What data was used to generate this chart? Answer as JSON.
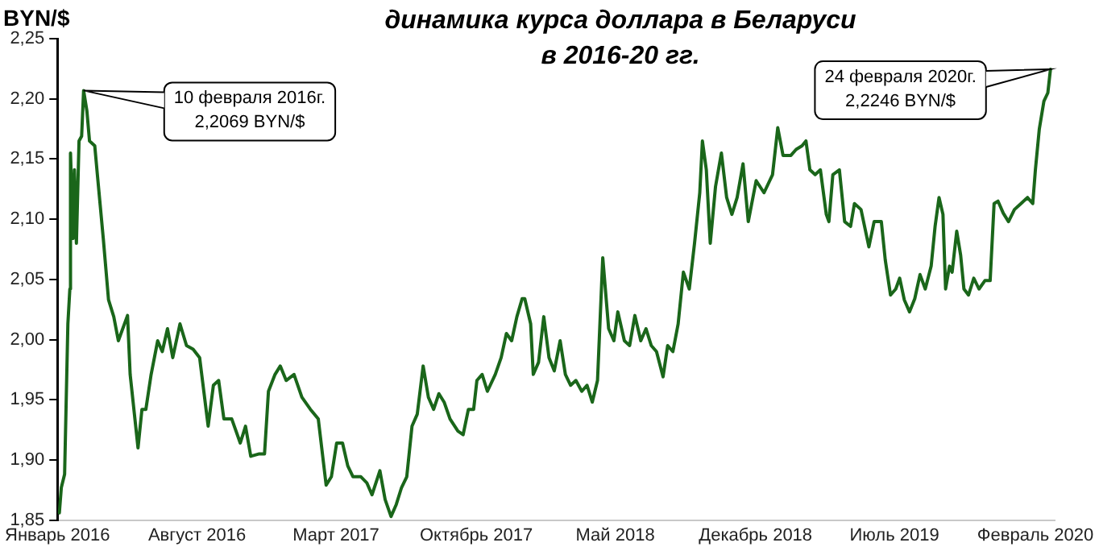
{
  "chart_data": {
    "type": "line",
    "title": "динамика курса доллара в Беларуси\nв 2016-20 гг.",
    "ylabel": "BYN/$",
    "x": [
      "2016-01-04",
      "2016-01-07",
      "2016-01-12",
      "2016-01-17",
      "2016-01-20",
      "2016-01-21",
      "2016-01-25",
      "2016-01-27",
      "2016-01-30",
      "2016-02-03",
      "2016-02-07",
      "2016-02-10",
      "2016-02-15",
      "2016-02-19",
      "2016-02-27",
      "2016-03-02",
      "2016-03-11",
      "2016-03-19",
      "2016-03-27",
      "2016-04-03",
      "2016-04-17",
      "2016-04-21",
      "2016-05-03",
      "2016-05-09",
      "2016-05-15",
      "2016-05-23",
      "2016-06-02",
      "2016-06-09",
      "2016-06-17",
      "2016-06-25",
      "2016-07-06",
      "2016-07-16",
      "2016-07-26",
      "2016-08-05",
      "2016-08-18",
      "2016-08-26",
      "2016-09-03",
      "2016-09-11",
      "2016-09-23",
      "2016-10-06",
      "2016-10-14",
      "2016-10-22",
      "2016-11-04",
      "2016-11-12",
      "2016-11-18",
      "2016-11-28",
      "2016-12-06",
      "2016-12-15",
      "2016-12-27",
      "2017-01-08",
      "2017-01-21",
      "2017-02-02",
      "2017-02-14",
      "2017-02-22",
      "2017-03-02",
      "2017-03-11",
      "2017-03-19",
      "2017-03-27",
      "2017-04-08",
      "2017-04-17",
      "2017-04-25",
      "2017-05-07",
      "2017-05-15",
      "2017-05-24",
      "2017-06-01",
      "2017-06-09",
      "2017-06-17",
      "2017-06-25",
      "2017-07-03",
      "2017-07-12",
      "2017-07-20",
      "2017-07-28",
      "2017-08-05",
      "2017-08-13",
      "2017-08-22",
      "2017-09-03",
      "2017-09-11",
      "2017-09-19",
      "2017-09-27",
      "2017-10-02",
      "2017-10-10",
      "2017-10-18",
      "2017-10-30",
      "2017-11-08",
      "2017-11-16",
      "2017-11-24",
      "2017-12-02",
      "2017-12-10",
      "2017-12-14",
      "2017-12-23",
      "2017-12-27",
      "2018-01-04",
      "2018-01-12",
      "2018-01-20",
      "2018-01-28",
      "2018-02-06",
      "2018-02-14",
      "2018-02-22",
      "2018-03-02",
      "2018-03-11",
      "2018-03-19",
      "2018-03-27",
      "2018-04-04",
      "2018-04-12",
      "2018-04-21",
      "2018-04-29",
      "2018-05-05",
      "2018-05-15",
      "2018-05-23",
      "2018-05-31",
      "2018-06-09",
      "2018-06-17",
      "2018-06-25",
      "2018-07-03",
      "2018-07-13",
      "2018-07-20",
      "2018-07-28",
      "2018-08-05",
      "2018-08-13",
      "2018-08-22",
      "2018-08-30",
      "2018-09-07",
      "2018-09-11",
      "2018-09-17",
      "2018-09-23",
      "2018-10-01",
      "2018-10-10",
      "2018-10-18",
      "2018-10-26",
      "2018-11-03",
      "2018-11-12",
      "2018-11-20",
      "2018-12-02",
      "2018-12-14",
      "2018-12-27",
      "2019-01-04",
      "2019-01-12",
      "2019-01-24",
      "2019-02-01",
      "2019-02-10",
      "2019-02-16",
      "2019-02-22",
      "2019-03-02",
      "2019-03-10",
      "2019-03-19",
      "2019-03-23",
      "2019-03-29",
      "2019-04-08",
      "2019-04-16",
      "2019-04-25",
      "2019-05-01",
      "2019-05-11",
      "2019-05-23",
      "2019-05-31",
      "2019-06-11",
      "2019-06-17",
      "2019-06-25",
      "2019-07-03",
      "2019-07-09",
      "2019-07-16",
      "2019-07-24",
      "2019-08-01",
      "2019-08-09",
      "2019-08-17",
      "2019-08-26",
      "2019-09-01",
      "2019-09-07",
      "2019-09-13",
      "2019-09-17",
      "2019-09-23",
      "2019-09-27",
      "2019-10-04",
      "2019-10-10",
      "2019-10-15",
      "2019-10-22",
      "2019-10-30",
      "2019-11-07",
      "2019-11-16",
      "2019-11-24",
      "2019-11-30",
      "2019-12-06",
      "2019-12-14",
      "2019-12-22",
      "2019-12-31",
      "2020-01-10",
      "2020-01-20",
      "2020-01-28",
      "2020-02-01",
      "2020-02-07",
      "2020-02-14",
      "2020-02-20",
      "2020-02-24"
    ],
    "series": [
      {
        "color": "#1a661a",
        "values": [
          1.856,
          1.877,
          1.888,
          2.013,
          2.042,
          2.155,
          2.084,
          2.141,
          2.08,
          2.165,
          2.169,
          2.2069,
          2.19,
          2.165,
          2.161,
          2.137,
          2.084,
          2.033,
          2.019,
          1.999,
          2.02,
          1.971,
          1.91,
          1.942,
          1.942,
          1.971,
          1.999,
          1.99,
          2.009,
          1.985,
          2.013,
          1.995,
          1.992,
          1.985,
          1.928,
          1.962,
          1.966,
          1.934,
          1.934,
          1.914,
          1.928,
          1.903,
          1.905,
          1.905,
          1.957,
          1.971,
          1.978,
          1.966,
          1.971,
          1.952,
          1.942,
          1.934,
          1.879,
          1.886,
          1.914,
          1.914,
          1.895,
          1.886,
          1.886,
          1.881,
          1.871,
          1.891,
          1.867,
          1.853,
          1.863,
          1.877,
          1.886,
          1.928,
          1.938,
          1.978,
          1.952,
          1.942,
          1.955,
          1.948,
          1.934,
          1.924,
          1.921,
          1.942,
          1.942,
          1.966,
          1.971,
          1.957,
          1.971,
          1.985,
          2.005,
          1.999,
          2.019,
          2.034,
          2.034,
          2.013,
          1.971,
          1.981,
          2.019,
          1.985,
          1.974,
          1.999,
          1.971,
          1.962,
          1.966,
          1.957,
          1.962,
          1.948,
          1.966,
          2.068,
          2.009,
          1.999,
          2.023,
          1.999,
          1.995,
          2.02,
          1.999,
          2.009,
          1.995,
          1.99,
          1.969,
          1.995,
          1.99,
          2.013,
          2.056,
          2.042,
          2.08,
          2.122,
          2.165,
          2.141,
          2.08,
          2.127,
          2.155,
          2.118,
          2.104,
          2.118,
          2.146,
          2.098,
          2.132,
          2.122,
          2.137,
          2.176,
          2.153,
          2.153,
          2.158,
          2.161,
          2.165,
          2.141,
          2.137,
          2.141,
          2.104,
          2.098,
          2.137,
          2.141,
          2.098,
          2.094,
          2.113,
          2.108,
          2.077,
          2.098,
          2.098,
          2.066,
          2.037,
          2.042,
          2.051,
          2.033,
          2.023,
          2.034,
          2.054,
          2.042,
          2.061,
          2.094,
          2.118,
          2.104,
          2.042,
          2.061,
          2.056,
          2.09,
          2.07,
          2.042,
          2.037,
          2.051,
          2.042,
          2.049,
          2.049,
          2.113,
          2.115,
          2.105,
          2.098,
          2.108,
          2.113,
          2.118,
          2.113,
          2.141,
          2.175,
          2.198,
          2.205,
          2.2246
        ]
      }
    ],
    "xlim": [
      "2016-01-01",
      "2020-03-01"
    ],
    "xticks": [
      {
        "value": "2016-01-01",
        "label": "Январь 2016"
      },
      {
        "value": "2016-08-01",
        "label": "Август 2016"
      },
      {
        "value": "2017-03-01",
        "label": "Март 2017"
      },
      {
        "value": "2017-10-01",
        "label": "Октябрь 2017"
      },
      {
        "value": "2018-05-01",
        "label": "Май 2018"
      },
      {
        "value": "2018-12-01",
        "label": "Декабрь 2018"
      },
      {
        "value": "2019-07-01",
        "label": "Июль 2019"
      },
      {
        "value": "2020-02-01",
        "label": "Февраль 2020"
      }
    ],
    "ylim": [
      1.85,
      2.25
    ],
    "yticks": [
      {
        "value": 1.85,
        "label": "1,85"
      },
      {
        "value": 1.9,
        "label": "1,90"
      },
      {
        "value": 1.95,
        "label": "1,95"
      },
      {
        "value": 2.0,
        "label": "2,00"
      },
      {
        "value": 2.05,
        "label": "2,05"
      },
      {
        "value": 2.1,
        "label": "2,10"
      },
      {
        "value": 2.15,
        "label": "2,15"
      },
      {
        "value": 2.2,
        "label": "2,20"
      },
      {
        "value": 2.25,
        "label": "2,25"
      }
    ],
    "annotations": [
      {
        "text": "10 февраля 2016г.\n2,2069 BYN/$",
        "x": "2016-02-10",
        "y": 2.2069
      },
      {
        "text": "24 февраля 2020г.\n2,2246 BYN/$",
        "x": "2020-02-24",
        "y": 2.2246
      }
    ],
    "grid": false,
    "legend": false,
    "marker": "none",
    "line_style": "solid"
  }
}
